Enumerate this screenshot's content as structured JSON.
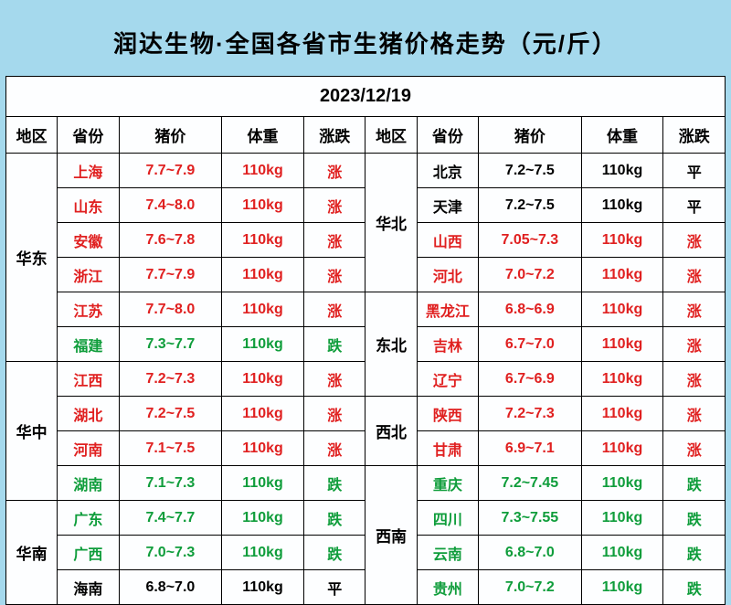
{
  "title": "润达生物·全国各省市生猪价格走势（元/斤）",
  "date": "2023/12/19",
  "headers": {
    "region": "地区",
    "province": "省份",
    "price": "猪价",
    "weight": "体重",
    "trend": "涨跌"
  },
  "colors": {
    "up": "#e02020",
    "down": "#0f9d3b",
    "flat": "#000000",
    "background": "#a5d9ed",
    "cell_bg": "#fdfeff",
    "border": "#000000"
  },
  "trend_labels": {
    "up": "涨",
    "down": "跌",
    "flat": "平"
  },
  "left_regions": [
    {
      "name": "华东",
      "rows": [
        {
          "province": "上海",
          "price": "7.7~7.9",
          "weight": "110kg",
          "trend": "up"
        },
        {
          "province": "山东",
          "price": "7.4~8.0",
          "weight": "110kg",
          "trend": "up"
        },
        {
          "province": "安徽",
          "price": "7.6~7.8",
          "weight": "110kg",
          "trend": "up"
        },
        {
          "province": "浙江",
          "price": "7.7~7.9",
          "weight": "110kg",
          "trend": "up"
        },
        {
          "province": "江苏",
          "price": "7.7~8.0",
          "weight": "110kg",
          "trend": "up"
        },
        {
          "province": "福建",
          "price": "7.3~7.7",
          "weight": "110kg",
          "trend": "down"
        }
      ]
    },
    {
      "name": "华中",
      "rows": [
        {
          "province": "江西",
          "price": "7.2~7.3",
          "weight": "110kg",
          "trend": "up"
        },
        {
          "province": "湖北",
          "price": "7.2~7.5",
          "weight": "110kg",
          "trend": "up"
        },
        {
          "province": "河南",
          "price": "7.1~7.5",
          "weight": "110kg",
          "trend": "up"
        },
        {
          "province": "湖南",
          "price": "7.1~7.3",
          "weight": "110kg",
          "trend": "down"
        }
      ]
    },
    {
      "name": "华南",
      "rows": [
        {
          "province": "广东",
          "price": "7.4~7.7",
          "weight": "110kg",
          "trend": "down"
        },
        {
          "province": "广西",
          "price": "7.0~7.3",
          "weight": "110kg",
          "trend": "down"
        },
        {
          "province": "海南",
          "price": "6.8~7.0",
          "weight": "110kg",
          "trend": "flat"
        }
      ]
    }
  ],
  "right_regions": [
    {
      "name": "华北",
      "rows": [
        {
          "province": "北京",
          "price": "7.2~7.5",
          "weight": "110kg",
          "trend": "flat"
        },
        {
          "province": "天津",
          "price": "7.2~7.5",
          "weight": "110kg",
          "trend": "flat"
        },
        {
          "province": "山西",
          "price": "7.05~7.3",
          "weight": "110kg",
          "trend": "up"
        },
        {
          "province": "河北",
          "price": "7.0~7.2",
          "weight": "110kg",
          "trend": "up"
        }
      ]
    },
    {
      "name": "东北",
      "rows": [
        {
          "province": "黑龙江",
          "price": "6.8~6.9",
          "weight": "110kg",
          "trend": "up"
        },
        {
          "province": "吉林",
          "price": "6.7~7.0",
          "weight": "110kg",
          "trend": "up"
        },
        {
          "province": "辽宁",
          "price": "6.7~6.9",
          "weight": "110kg",
          "trend": "up"
        }
      ]
    },
    {
      "name": "西北",
      "rows": [
        {
          "province": "陕西",
          "price": "7.2~7.3",
          "weight": "110kg",
          "trend": "up"
        },
        {
          "province": "甘肃",
          "price": "6.9~7.1",
          "weight": "110kg",
          "trend": "up"
        }
      ]
    },
    {
      "name": "西南",
      "rows": [
        {
          "province": "重庆",
          "price": "7.2~7.45",
          "weight": "110kg",
          "trend": "down"
        },
        {
          "province": "四川",
          "price": "7.3~7.55",
          "weight": "110kg",
          "trend": "down"
        },
        {
          "province": "云南",
          "price": "6.8~7.0",
          "weight": "110kg",
          "trend": "down"
        },
        {
          "province": "贵州",
          "price": "7.0~7.2",
          "weight": "110kg",
          "trend": "down"
        }
      ]
    }
  ]
}
